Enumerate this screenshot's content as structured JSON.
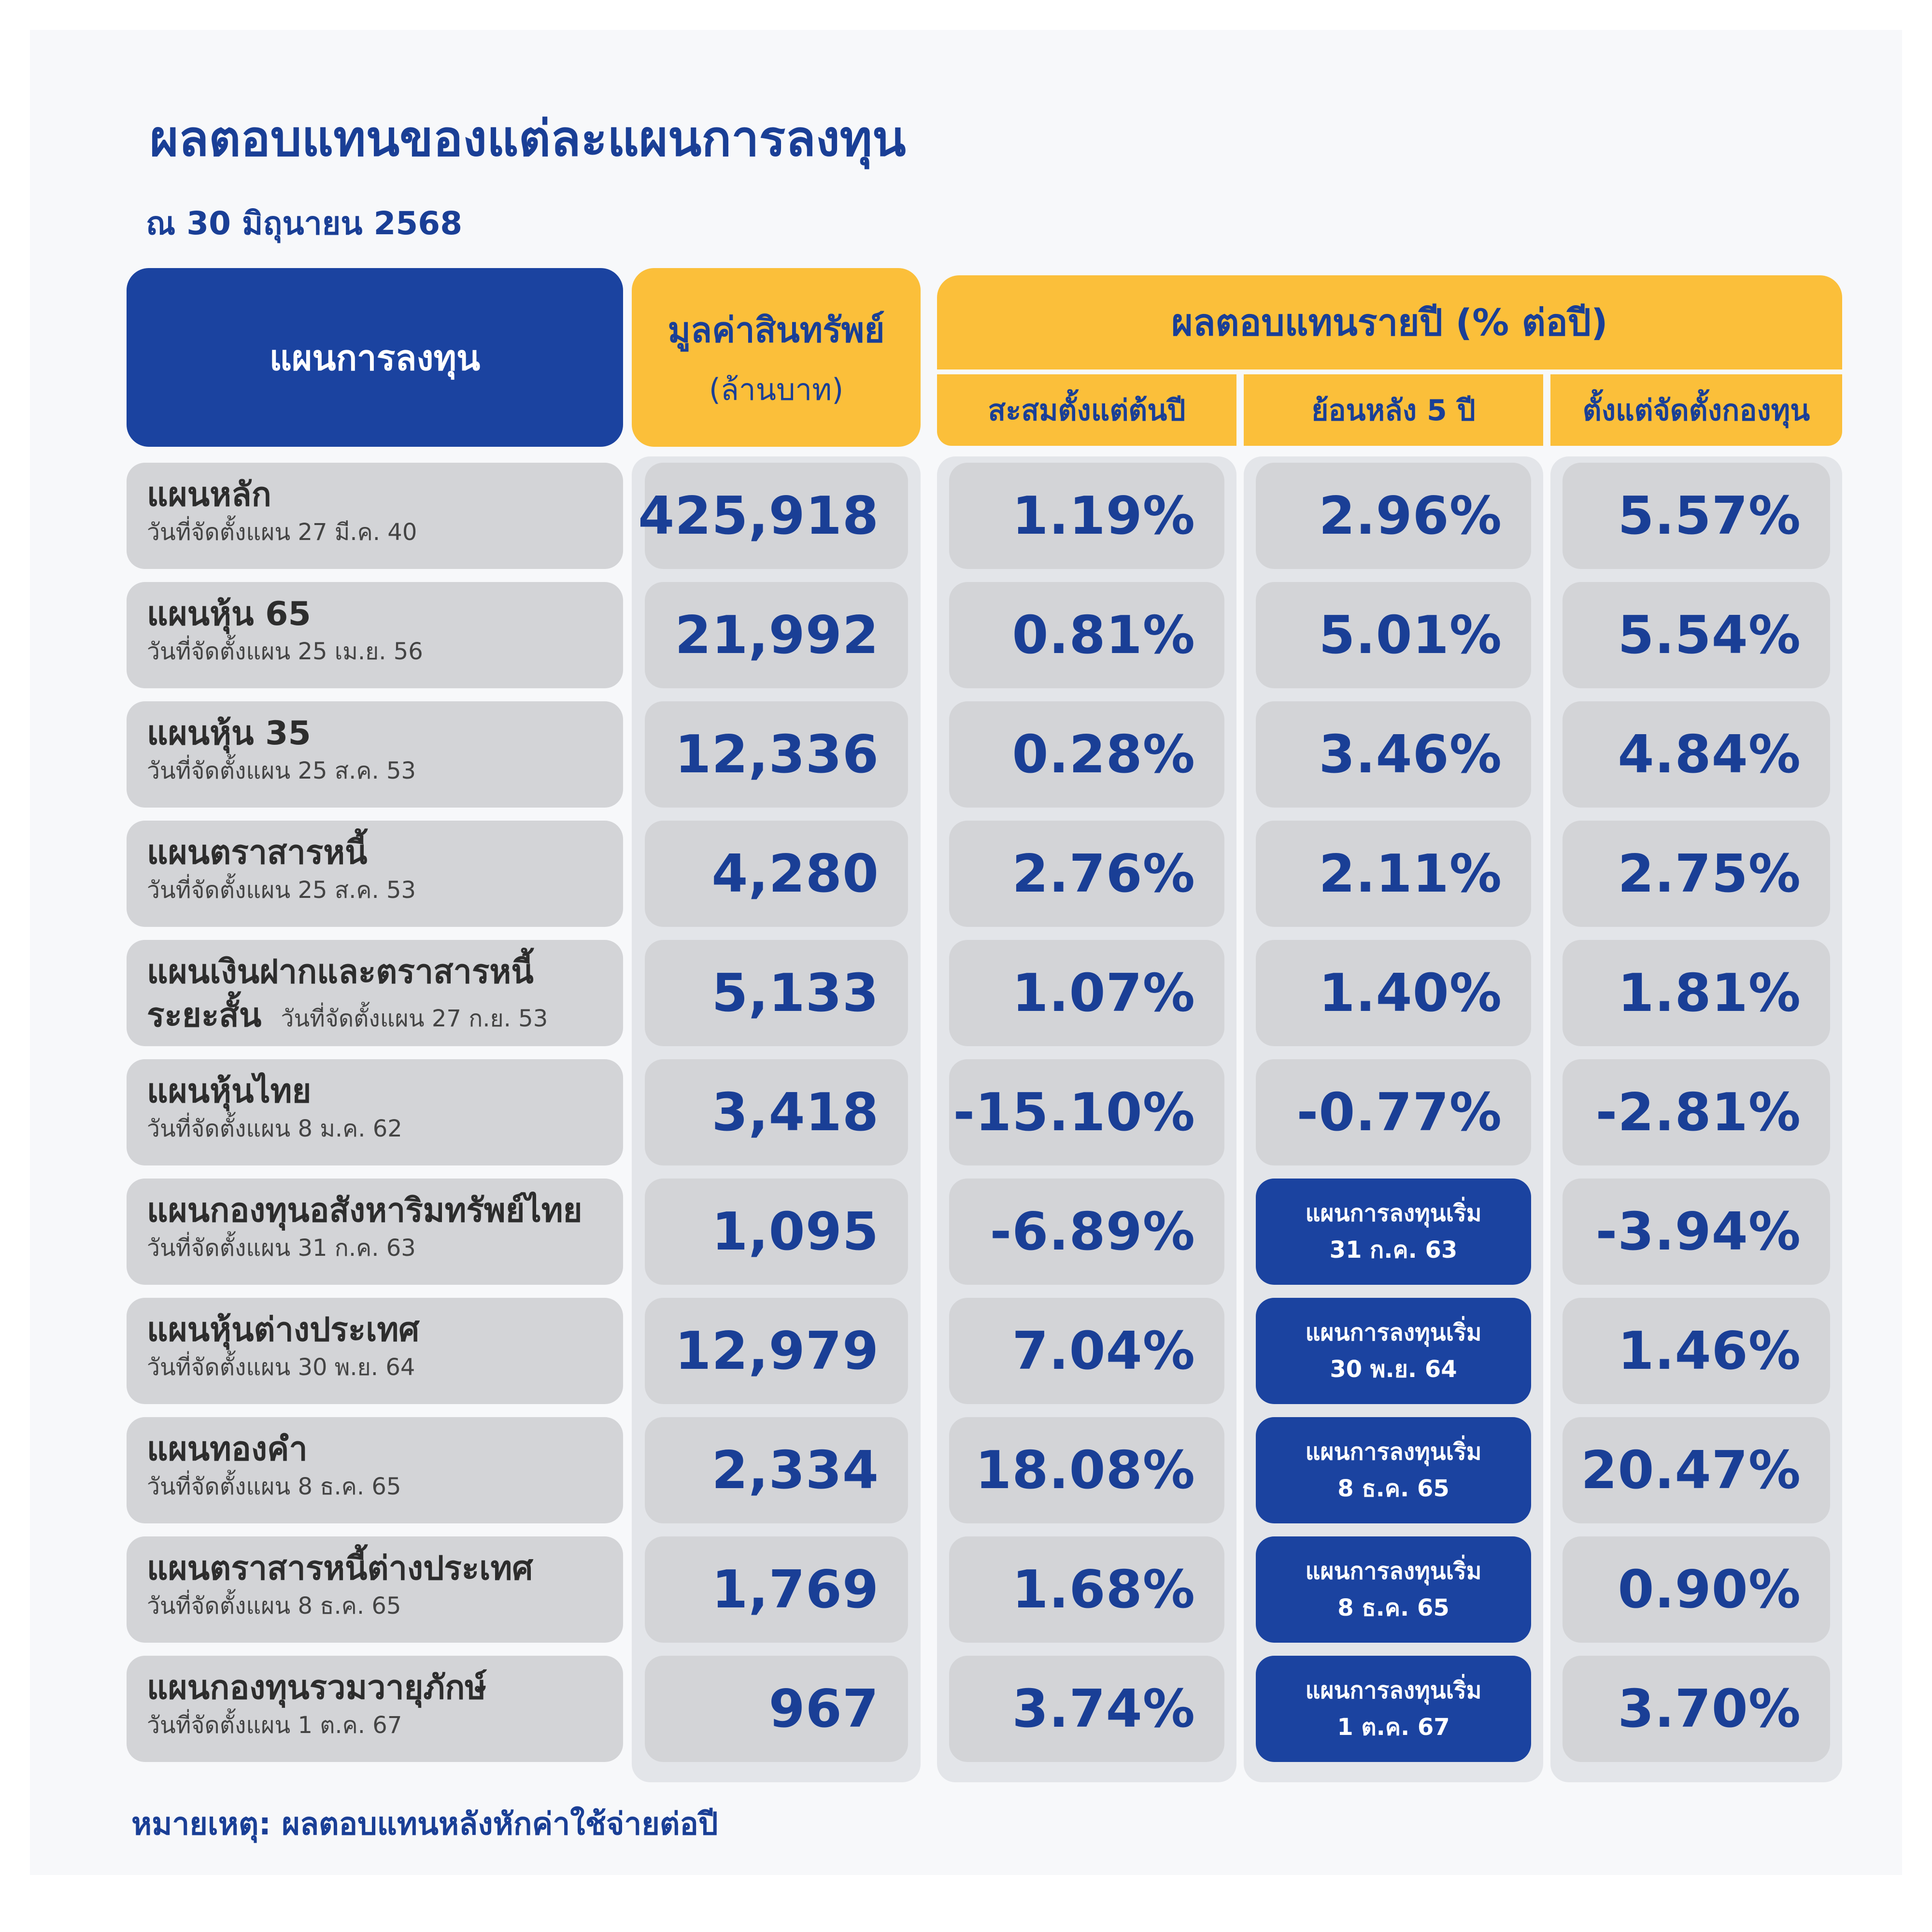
{
  "title": "ผลตอบแทนของแต่ละแผนการลงทุน",
  "as_of": "ณ 30 มิถุนายน 2568",
  "header": {
    "plan": "แผนการลงทุน",
    "asset_line1": "มูลค่าสินทรัพย์",
    "asset_line2": "(ล้านบาท)",
    "return_group": "ผลตอบแทนรายปี (% ต่อปี)",
    "ytd": "สะสมตั้งแต่ต้นปี",
    "five_year": "ย้อนหลัง 5 ปี",
    "since_inception": "ตั้งแต่จัดตั้งกองทุน"
  },
  "rows": [
    {
      "name": "แผนหลัก",
      "setup": "วันที่จัดตั้งแผน 27 มี.ค. 40",
      "assets": "425,918",
      "ytd": "1.19%",
      "five_year": "2.96%",
      "since": "5.57%"
    },
    {
      "name": "แผนหุ้น 65",
      "setup": "วันที่จัดตั้งแผน 25 เม.ย. 56",
      "assets": "21,992",
      "ytd": "0.81%",
      "five_year": "5.01%",
      "since": "5.54%"
    },
    {
      "name": "แผนหุ้น 35",
      "setup": "วันที่จัดตั้งแผน 25 ส.ค. 53",
      "assets": "12,336",
      "ytd": "0.28%",
      "five_year": "3.46%",
      "since": "4.84%"
    },
    {
      "name": "แผนตราสารหนี้",
      "setup": "วันที่จัดตั้งแผน 25 ส.ค. 53",
      "assets": "4,280",
      "ytd": "2.76%",
      "five_year": "2.11%",
      "since": "2.75%"
    },
    {
      "name": "แผนเงินฝากและตราสารหนี้",
      "name2": "ระยะสั้น",
      "setup": "วันที่จัดตั้งแผน 27 ก.ย. 53",
      "assets": "5,133",
      "ytd": "1.07%",
      "five_year": "1.40%",
      "since": "1.81%"
    },
    {
      "name": "แผนหุ้นไทย",
      "setup": "วันที่จัดตั้งแผน 8 ม.ค. 62",
      "assets": "3,418",
      "ytd": "-15.10%",
      "five_year": "-0.77%",
      "since": "-2.81%"
    },
    {
      "name": "แผนกองทุนอสังหาริมทรัพย์ไทย",
      "setup": "วันที่จัดตั้งแผน 31 ก.ค. 63",
      "assets": "1,095",
      "ytd": "-6.89%",
      "five_year_note": [
        "แผนการลงทุนเริ่ม",
        "31 ก.ค. 63"
      ],
      "since": "-3.94%"
    },
    {
      "name": "แผนหุ้นต่างประเทศ",
      "setup": "วันที่จัดตั้งแผน 30 พ.ย. 64",
      "assets": "12,979",
      "ytd": "7.04%",
      "five_year_note": [
        "แผนการลงทุนเริ่ม",
        "30 พ.ย. 64"
      ],
      "since": "1.46%"
    },
    {
      "name": "แผนทองคำ",
      "setup": "วันที่จัดตั้งแผน 8 ธ.ค. 65",
      "assets": "2,334",
      "ytd": "18.08%",
      "five_year_note": [
        "แผนการลงทุนเริ่ม",
        "8 ธ.ค. 65"
      ],
      "since": "20.47%"
    },
    {
      "name": "แผนตราสารหนี้ต่างประเทศ",
      "setup": "วันที่จัดตั้งแผน 8 ธ.ค. 65",
      "assets": "1,769",
      "ytd": "1.68%",
      "five_year_note": [
        "แผนการลงทุนเริ่ม",
        "8 ธ.ค. 65"
      ],
      "since": "0.90%"
    },
    {
      "name": "แผนกองทุนรวมวายุภักษ์",
      "setup": "วันที่จัดตั้งแผน 1 ต.ค. 67",
      "assets": "967",
      "ytd": "3.74%",
      "five_year_note": [
        "แผนการลงทุนเริ่ม",
        "1 ต.ค. 67"
      ],
      "since": "3.70%"
    }
  ],
  "footnote": "หมายเหตุ: ผลตอบแทนหลังหักค่าใช้จ่ายต่อปี",
  "colors": {
    "navy": "#1b43a0",
    "text_blue": "#1a3f96",
    "yellow": "#fbbf3a",
    "cell_gray": "#d3d4d7",
    "column_bg": "#e3e5e9"
  }
}
